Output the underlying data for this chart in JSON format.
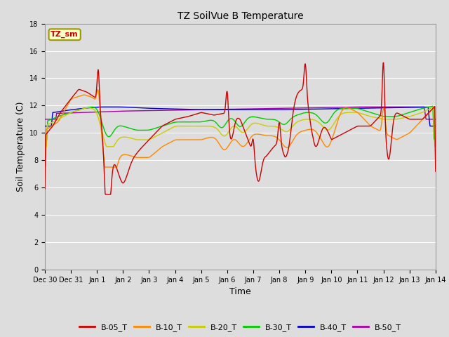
{
  "title": "TZ SoilVue B Temperature",
  "xlabel": "Time",
  "ylabel": "Soil Temperature (C)",
  "annotation_text": "TZ_sm",
  "annotation_color": "#cc0000",
  "annotation_bg": "#ffffcc",
  "annotation_edge": "#999900",
  "ylim": [
    0,
    18
  ],
  "yticks": [
    0,
    2,
    4,
    6,
    8,
    10,
    12,
    14,
    16,
    18
  ],
  "bg_color": "#dddddd",
  "grid_color": "#ffffff",
  "series_colors": {
    "B-05_T": "#cc0000",
    "B-10_T": "#ff8800",
    "B-20_T": "#cccc00",
    "B-30_T": "#00cc00",
    "B-40_T": "#0000cc",
    "B-50_T": "#aa00aa"
  },
  "x_tick_labels": [
    "Dec 30",
    "Dec 31",
    "Jan 1",
    "Jan 2",
    "Jan 3",
    "Jan 4",
    "Jan 5",
    "Jan 6",
    "Jan 7",
    "Jan 8",
    "Jan 9",
    "Jan 10",
    "Jan 11",
    "Jan 12",
    "Jan 13",
    "Jan 14"
  ],
  "figsize": [
    6.4,
    4.8
  ],
  "dpi": 100
}
